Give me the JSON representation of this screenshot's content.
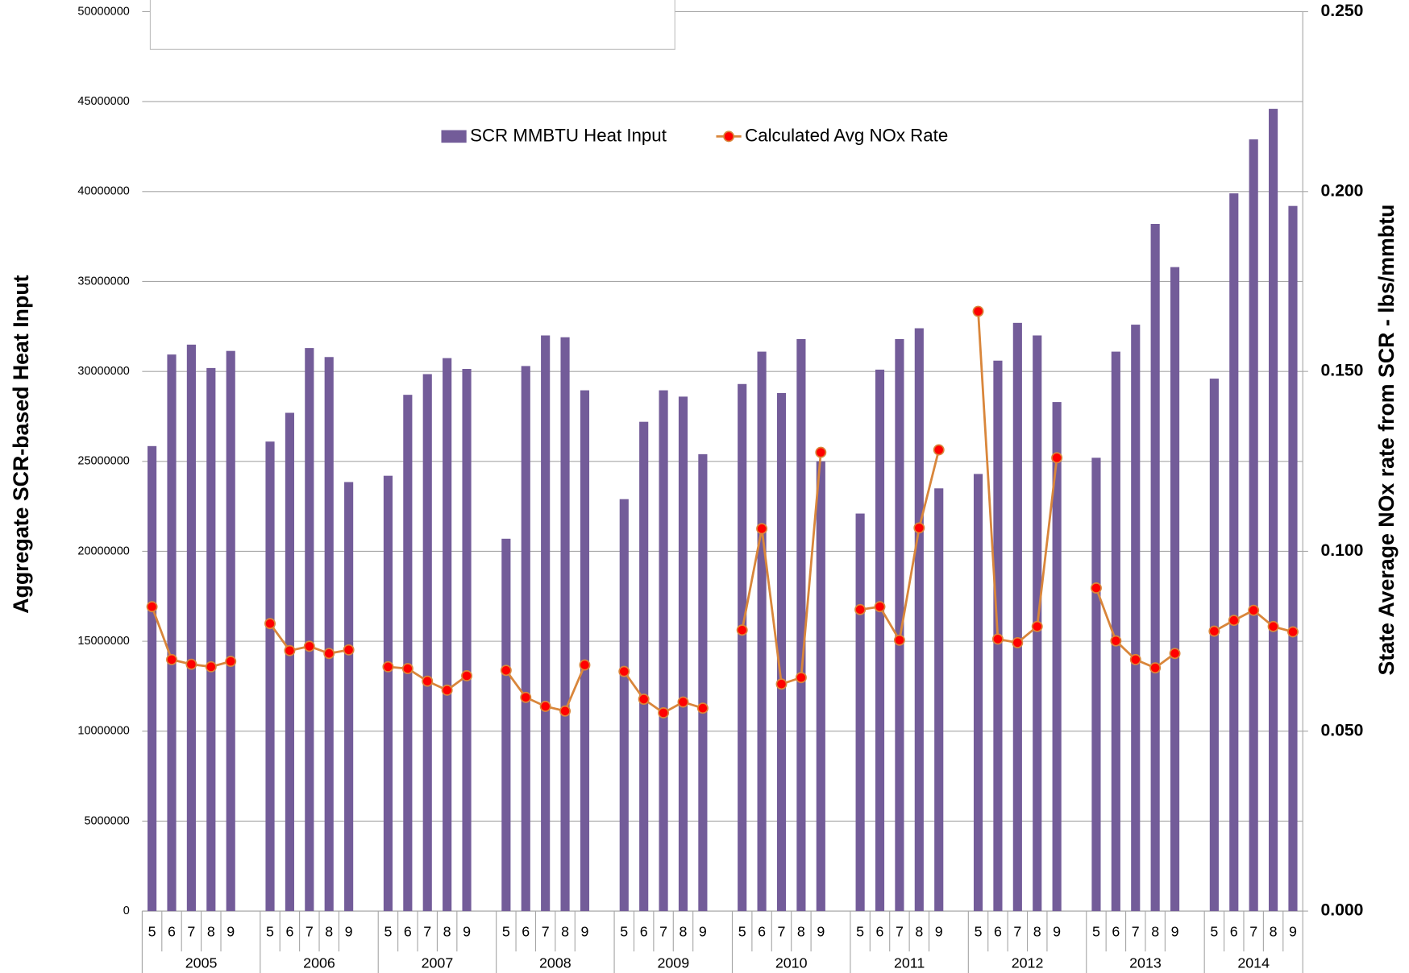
{
  "chart_data": {
    "type": "bar",
    "y_label": "Aggregate SCR-based Heat Input",
    "y2_label": "State Average NOx rate from SCR - lbs/mmbtu",
    "categories": [
      "5",
      "6",
      "7",
      "8",
      "9",
      null,
      "5",
      "6",
      "7",
      "8",
      "9",
      null,
      "5",
      "6",
      "7",
      "8",
      "9",
      null,
      "5",
      "6",
      "7",
      "8",
      "9",
      null,
      "5",
      "6",
      "7",
      "8",
      "9",
      null,
      "5",
      "6",
      "7",
      "8",
      "9",
      null,
      "5",
      "6",
      "7",
      "8",
      "9",
      null,
      "5",
      "6",
      "7",
      "8",
      "9",
      null,
      "5",
      "6",
      "7",
      "8",
      "9",
      null,
      "5",
      "6",
      "7",
      "8",
      "9"
    ],
    "x_groups": [
      "2005",
      "2006",
      "2007",
      "2008",
      "2009",
      "2010",
      "2011",
      "2012",
      "2013",
      "2014"
    ],
    "series": [
      {
        "name": "SCR MMBTU Heat Input",
        "type": "bar",
        "color": "#735c99",
        "values": [
          25850000,
          30940000,
          31490000,
          30190000,
          31140000,
          null,
          26100000,
          27700000,
          31300000,
          30800000,
          23850000,
          null,
          24200000,
          28700000,
          29850000,
          30740000,
          30140000,
          null,
          20700000,
          30300000,
          32000000,
          31900000,
          28950000,
          null,
          22900000,
          27200000,
          28950000,
          28600000,
          25400000,
          null,
          29300000,
          31100000,
          28800000,
          31800000,
          25000000,
          null,
          22100000,
          30100000,
          31800000,
          32400000,
          23500000,
          null,
          24300000,
          30600000,
          32700000,
          32000000,
          28300000,
          null,
          25200000,
          31100000,
          32600000,
          38200000,
          35800000,
          null,
          29600000,
          39900000,
          42900000,
          44600000,
          39200000
        ]
      },
      {
        "name": "Calculated Avg NOx Rate",
        "type": "line",
        "axis": "y2",
        "color": "#d9863b",
        "marker_color": "#ff0000",
        "values": [
          0.0846,
          0.0699,
          0.0686,
          0.0679,
          0.0694,
          null,
          0.0799,
          0.0724,
          0.0736,
          0.0716,
          0.0726,
          null,
          0.0679,
          0.0674,
          0.0639,
          0.0614,
          0.0654,
          null,
          0.0669,
          0.0594,
          0.0569,
          0.0556,
          0.0684,
          null,
          0.0666,
          0.0589,
          0.0551,
          0.0581,
          0.0564,
          null,
          0.0781,
          0.1063,
          0.0631,
          0.0649,
          0.1275,
          null,
          0.0838,
          0.0846,
          0.0753,
          0.1065,
          0.1282,
          null,
          0.1667,
          0.0756,
          0.0746,
          0.0791,
          0.126,
          null,
          0.0898,
          0.0751,
          0.0699,
          0.0676,
          0.0716,
          null,
          0.0778,
          0.0808,
          0.0836,
          0.0791,
          0.0776
        ]
      }
    ],
    "ylim": [
      0,
      50000000
    ],
    "yticks": [
      0,
      5000000,
      10000000,
      15000000,
      20000000,
      25000000,
      30000000,
      35000000,
      40000000,
      45000000,
      50000000
    ],
    "y2lim": [
      0,
      0.25
    ],
    "y2ticks": [
      {
        "value": 0,
        "label": "0.000"
      },
      {
        "value": 0.05,
        "label": "0.050"
      },
      {
        "value": 0.1,
        "label": "0.100"
      },
      {
        "value": 0.15,
        "label": "0.150"
      },
      {
        "value": 0.2,
        "label": "0.200"
      },
      {
        "value": 0.25,
        "label": "0.250"
      }
    ],
    "y2_tick_color": "#ff0000",
    "grid": true,
    "legend": "top"
  }
}
